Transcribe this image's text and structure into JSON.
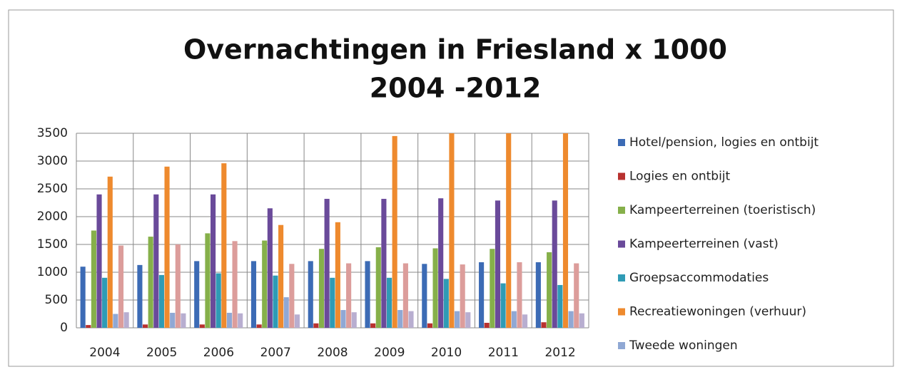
{
  "chart_data": {
    "type": "bar",
    "title": [
      "Overnachtingen in Friesland  x 1000",
      "2004 -2012"
    ],
    "categories": [
      "2004",
      "2005",
      "2006",
      "2007",
      "2008",
      "2009",
      "2010",
      "2011",
      "2012"
    ],
    "series": [
      {
        "name": "Hotel/pension, logies en ontbijt",
        "color": "#3c6bb5",
        "values": [
          1100,
          1130,
          1200,
          1200,
          1200,
          1200,
          1150,
          1180,
          1180
        ]
      },
      {
        "name": "Logies en ontbijt",
        "color": "#b8312f",
        "values": [
          50,
          60,
          60,
          60,
          80,
          80,
          80,
          90,
          100
        ]
      },
      {
        "name": "Kampeerterreinen (toeristisch)",
        "color": "#86b04a",
        "values": [
          1750,
          1640,
          1700,
          1570,
          1420,
          1450,
          1430,
          1420,
          1360
        ]
      },
      {
        "name": "Kampeerterreinen (vast)",
        "color": "#6a4a9a",
        "values": [
          2400,
          2400,
          2400,
          2150,
          2320,
          2320,
          2330,
          2290,
          2290
        ]
      },
      {
        "name": "Groepsaccommodaties",
        "color": "#2f9bb5",
        "values": [
          900,
          950,
          980,
          940,
          900,
          900,
          880,
          800,
          770
        ]
      },
      {
        "name": "Recreatiewoningen (verhuur)",
        "color": "#ee8a2e",
        "values": [
          2720,
          2900,
          2960,
          1850,
          1900,
          3450,
          3500,
          3500,
          3500
        ]
      },
      {
        "name": "Tweede woningen",
        "color": "#90a8d4",
        "values": [
          250,
          270,
          270,
          550,
          320,
          320,
          300,
          300,
          300
        ]
      },
      {
        "color": "#dc9d9b",
        "values": [
          1480,
          1500,
          1560,
          1150,
          1160,
          1160,
          1140,
          1180,
          1160
        ]
      },
      {
        "color": "#b8aed0",
        "values": [
          280,
          260,
          260,
          240,
          280,
          300,
          280,
          240,
          260
        ]
      }
    ],
    "ylim": [
      0,
      3500
    ],
    "yticks": [
      0,
      500,
      1000,
      1500,
      2000,
      2500,
      3000,
      3500
    ],
    "grid": true
  }
}
